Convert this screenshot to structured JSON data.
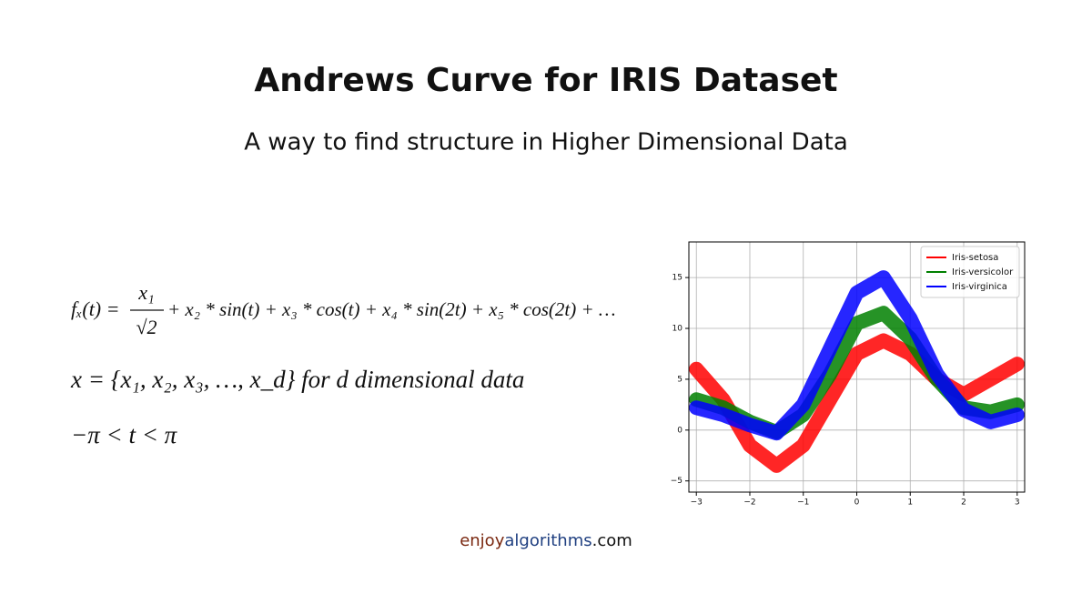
{
  "header": {
    "title": "Andrews Curve for IRIS Dataset",
    "subtitle": "A way to find structure in Higher Dimensional Data"
  },
  "formulas": {
    "line1": {
      "lhs": "fₓ(t) =",
      "numerator": "x₁",
      "denominator": "√2",
      "rest": "+ x₂ * sin(t) + x₃ * cos(t) + x₄ * sin(2t) + x₅ * cos(2t) + …"
    },
    "line2": "x = {x₁, x₂, x₃, …, x_d} for d dimensional data",
    "line3": "−π < t < π"
  },
  "chart_data": {
    "type": "line",
    "x": [
      -3,
      -2.5,
      -2,
      -1.5,
      -1,
      -0.5,
      0,
      0.5,
      1,
      1.5,
      2,
      2.5,
      3
    ],
    "series": [
      {
        "name": "Iris-setosa",
        "color": "#ff0000",
        "values": [
          6,
          3,
          -1.5,
          -3.5,
          -1.5,
          3,
          7.5,
          8.8,
          7.5,
          5,
          3.5,
          5,
          6.5
        ]
      },
      {
        "name": "Iris-versicolor",
        "color": "#008000",
        "values": [
          3,
          2.2,
          0.8,
          -0.2,
          1.5,
          5.5,
          10.5,
          11.5,
          9,
          5,
          2.2,
          1.8,
          2.5
        ]
      },
      {
        "name": "Iris-virginica",
        "color": "#0000ff",
        "values": [
          2.2,
          1.5,
          0.5,
          -0.3,
          2.5,
          8,
          13.5,
          15,
          11,
          5.5,
          2,
          0.8,
          1.5
        ]
      }
    ],
    "xlim": [
      -3.14,
      3.14
    ],
    "ylim": [
      -6.1,
      18.5
    ],
    "xticks": [
      {
        "value": -3,
        "label": "−3"
      },
      {
        "value": -2,
        "label": "−2"
      },
      {
        "value": -1,
        "label": "−1"
      },
      0,
      1,
      2,
      3
    ],
    "yticks": [
      {
        "value": -5,
        "label": "−5"
      },
      0,
      5,
      10,
      15
    ],
    "grid": true,
    "legend": "upper-right"
  },
  "footer": {
    "part1": "enjoy",
    "part2": "algorithms",
    "part3": ".com"
  }
}
